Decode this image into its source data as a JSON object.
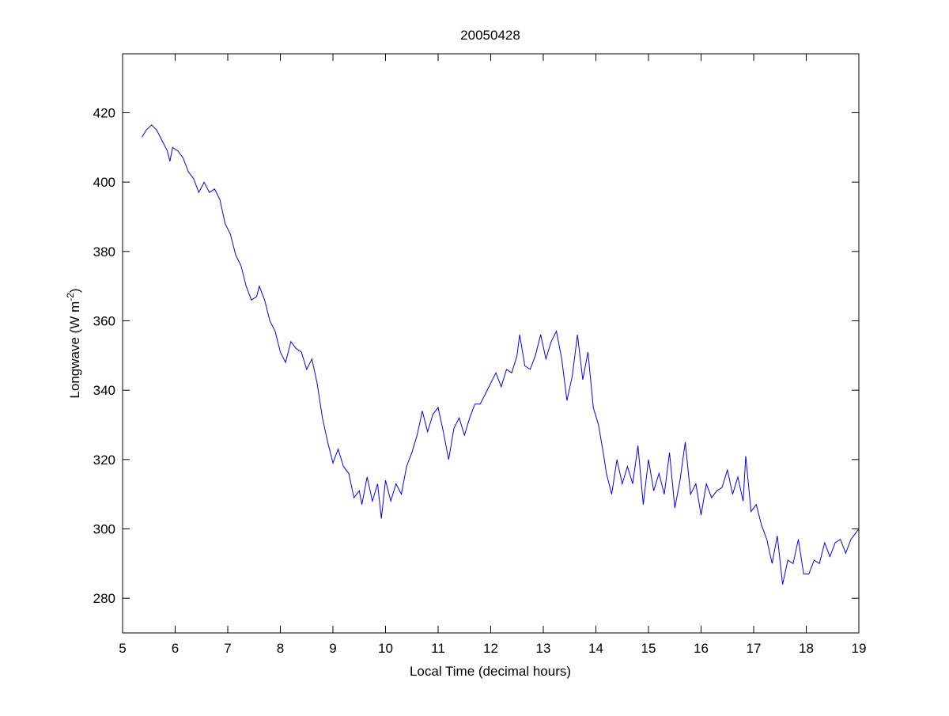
{
  "chart_data": {
    "type": "line",
    "title": "20050428",
    "xlabel": "Local Time (decimal hours)",
    "ylabel": {
      "text": "Longwave (W m",
      "superscript": "-2",
      "suffix": ")"
    },
    "xlim": [
      5,
      19
    ],
    "ylim": [
      270,
      437
    ],
    "xticks": [
      5,
      6,
      7,
      8,
      9,
      10,
      11,
      12,
      13,
      14,
      15,
      16,
      17,
      18,
      19
    ],
    "yticks": [
      280,
      300,
      320,
      340,
      360,
      380,
      400,
      420
    ],
    "grid": false,
    "line_color": "#0000ff",
    "series": [
      {
        "x": [
          5.37,
          5.45,
          5.55,
          5.65,
          5.75,
          5.85,
          5.9,
          5.95,
          6.05,
          6.15,
          6.25,
          6.35,
          6.45,
          6.55,
          6.65,
          6.75,
          6.85,
          6.95,
          7.05,
          7.15,
          7.25,
          7.35,
          7.45,
          7.55,
          7.6,
          7.7,
          7.8,
          7.9,
          8.0,
          8.1,
          8.2,
          8.3,
          8.4,
          8.5,
          8.6,
          8.7,
          8.8,
          8.9,
          9.0,
          9.1,
          9.2,
          9.3,
          9.4,
          9.5,
          9.55,
          9.65,
          9.75,
          9.85,
          9.92,
          10.0,
          10.1,
          10.2,
          10.3,
          10.4,
          10.5,
          10.6,
          10.7,
          10.8,
          10.9,
          11.0,
          11.1,
          11.2,
          11.3,
          11.4,
          11.5,
          11.6,
          11.7,
          11.8,
          11.9,
          12.0,
          12.1,
          12.2,
          12.3,
          12.4,
          12.5,
          12.55,
          12.65,
          12.75,
          12.85,
          12.95,
          13.05,
          13.15,
          13.25,
          13.35,
          13.45,
          13.55,
          13.65,
          13.75,
          13.85,
          13.95,
          14.05,
          14.15,
          14.2,
          14.3,
          14.4,
          14.5,
          14.6,
          14.7,
          14.8,
          14.9,
          15.0,
          15.1,
          15.2,
          15.3,
          15.4,
          15.5,
          15.6,
          15.7,
          15.8,
          15.9,
          16.0,
          16.1,
          16.2,
          16.3,
          16.4,
          16.5,
          16.6,
          16.7,
          16.8,
          16.85,
          16.95,
          17.05,
          17.15,
          17.25,
          17.35,
          17.45,
          17.55,
          17.65,
          17.75,
          17.85,
          17.95,
          18.05,
          18.15,
          18.25,
          18.35,
          18.45,
          18.55,
          18.65,
          18.75,
          18.85,
          18.95,
          19.0
        ],
        "y": [
          413,
          415,
          416.5,
          415,
          412,
          409,
          406,
          410,
          409,
          407,
          403,
          401,
          397,
          400,
          397,
          398,
          395,
          388,
          385,
          379,
          376,
          370,
          366,
          367,
          370,
          366,
          360,
          357,
          351,
          348,
          354,
          352,
          351,
          346,
          349,
          342,
          332,
          325,
          319,
          323,
          318,
          316,
          309,
          311,
          307,
          315,
          308,
          313,
          303,
          314,
          308,
          313,
          310,
          318,
          322,
          327,
          334,
          328,
          333,
          335,
          328,
          320,
          329,
          332,
          327,
          332,
          336,
          336,
          339,
          342,
          345,
          341,
          346,
          345,
          350,
          356,
          347,
          346,
          350,
          356,
          349,
          354,
          357,
          349,
          337,
          344,
          356,
          343,
          351,
          335,
          330,
          321,
          316,
          310,
          320,
          313,
          318,
          313,
          324,
          307,
          320,
          311,
          316,
          310,
          322,
          306,
          314,
          325,
          310,
          313,
          304,
          313,
          309,
          311,
          312,
          317,
          310,
          315,
          308,
          321,
          305,
          307,
          301,
          297,
          290,
          298,
          284,
          291,
          290,
          297,
          287,
          287,
          291,
          290,
          296,
          292,
          296,
          297,
          293,
          297,
          299,
          300
        ]
      }
    ]
  }
}
